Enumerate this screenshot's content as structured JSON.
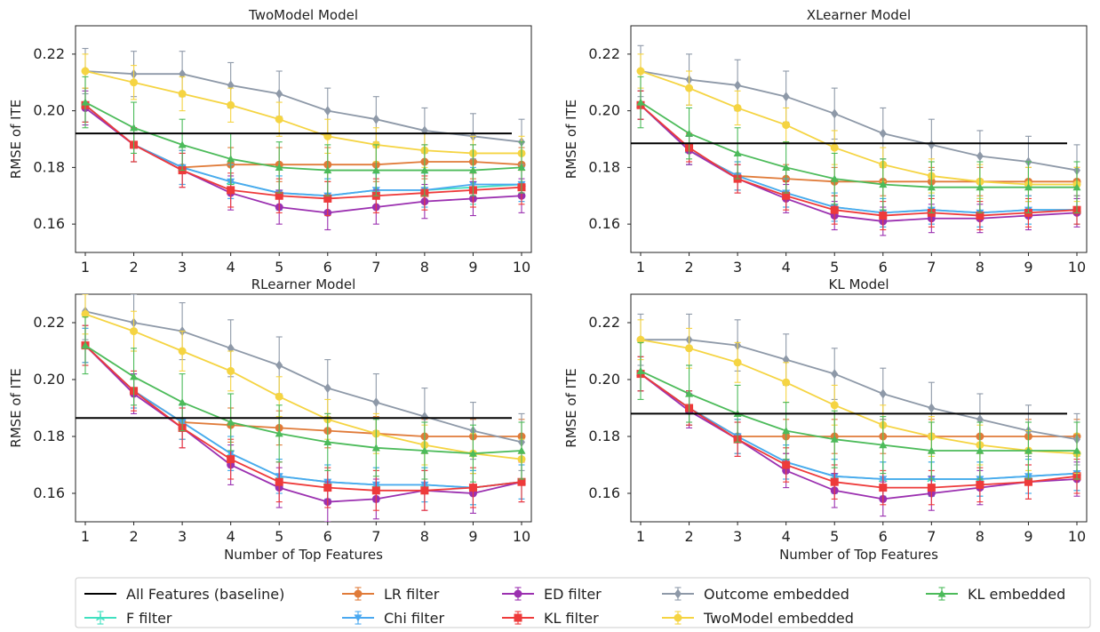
{
  "colors": {
    "baseline": "#000000",
    "F filter": "#40e0c0",
    "LR filter": "#e07b39",
    "Chi filter": "#4aa8f0",
    "ED filter": "#9b30b0",
    "KL filter": "#ee3a3a",
    "Outcome embedded": "#8e99a8",
    "TwoModel embedded": "#f5d442",
    "KL embedded": "#4cbb5a"
  },
  "legend": [
    {
      "name": "All Features (baseline)",
      "marker": "none"
    },
    {
      "name": "F filter",
      "marker": "tri-up"
    },
    {
      "name": "LR filter",
      "marker": "circle"
    },
    {
      "name": "Chi filter",
      "marker": "tri-down"
    },
    {
      "name": "ED filter",
      "marker": "circle"
    },
    {
      "name": "KL filter",
      "marker": "square"
    },
    {
      "name": "Outcome embedded",
      "marker": "diamond"
    },
    {
      "name": "TwoModel embedded",
      "marker": "circle"
    },
    {
      "name": "KL embedded",
      "marker": "triangle"
    }
  ],
  "chart_data": [
    {
      "type": "line",
      "title": "TwoModel Model",
      "xlabel": "",
      "ylabel": "RMSE of ITE",
      "x": [
        1,
        2,
        3,
        4,
        5,
        6,
        7,
        8,
        9,
        10
      ],
      "xticks": [
        "1",
        "2",
        "3",
        "4",
        "5",
        "6",
        "7",
        "8",
        "9",
        "10"
      ],
      "yticks": [
        "0.16",
        "0.18",
        "0.20",
        "0.22"
      ],
      "ylim": [
        0.15,
        0.23
      ],
      "baseline": 0.192,
      "series": [
        {
          "name": "F filter",
          "values": [
            0.202,
            0.188,
            0.18,
            0.175,
            0.171,
            0.17,
            0.172,
            0.172,
            0.173,
            0.174
          ],
          "err": 0.006
        },
        {
          "name": "LR filter",
          "values": [
            0.202,
            0.188,
            0.18,
            0.181,
            0.181,
            0.181,
            0.181,
            0.182,
            0.182,
            0.181
          ],
          "err": 0.006
        },
        {
          "name": "Chi filter",
          "values": [
            0.202,
            0.188,
            0.18,
            0.175,
            0.171,
            0.17,
            0.172,
            0.172,
            0.174,
            0.174
          ],
          "err": 0.006
        },
        {
          "name": "ED filter",
          "values": [
            0.201,
            0.188,
            0.179,
            0.171,
            0.166,
            0.164,
            0.166,
            0.168,
            0.169,
            0.17
          ],
          "err": 0.006
        },
        {
          "name": "KL filter",
          "values": [
            0.202,
            0.188,
            0.179,
            0.172,
            0.17,
            0.169,
            0.17,
            0.171,
            0.172,
            0.173
          ],
          "err": 0.006
        },
        {
          "name": "Outcome embedded",
          "values": [
            0.214,
            0.213,
            0.213,
            0.209,
            0.206,
            0.2,
            0.197,
            0.193,
            0.191,
            0.189
          ],
          "err": 0.008
        },
        {
          "name": "TwoModel embedded",
          "values": [
            0.214,
            0.21,
            0.206,
            0.202,
            0.197,
            0.191,
            0.188,
            0.186,
            0.185,
            0.185
          ],
          "err": 0.006
        },
        {
          "name": "KL embedded",
          "values": [
            0.203,
            0.194,
            0.188,
            0.183,
            0.18,
            0.179,
            0.179,
            0.179,
            0.179,
            0.18
          ],
          "err": 0.009
        }
      ]
    },
    {
      "type": "line",
      "title": "XLearner Model",
      "xlabel": "",
      "ylabel": "RMSE of ITE",
      "x": [
        1,
        2,
        3,
        4,
        5,
        6,
        7,
        8,
        9,
        10
      ],
      "xticks": [
        "1",
        "2",
        "3",
        "4",
        "5",
        "6",
        "7",
        "8",
        "9",
        "10"
      ],
      "yticks": [
        "0.16",
        "0.18",
        "0.20",
        "0.22"
      ],
      "ylim": [
        0.15,
        0.23
      ],
      "baseline": 0.1885,
      "series": [
        {
          "name": "F filter",
          "values": [
            0.202,
            0.186,
            0.177,
            0.171,
            0.166,
            0.164,
            0.165,
            0.164,
            0.165,
            0.165
          ],
          "err": 0.005
        },
        {
          "name": "LR filter",
          "values": [
            0.202,
            0.186,
            0.177,
            0.176,
            0.175,
            0.175,
            0.175,
            0.175,
            0.175,
            0.175
          ],
          "err": 0.005
        },
        {
          "name": "Chi filter",
          "values": [
            0.202,
            0.186,
            0.177,
            0.171,
            0.166,
            0.164,
            0.165,
            0.164,
            0.165,
            0.165
          ],
          "err": 0.005
        },
        {
          "name": "ED filter",
          "values": [
            0.202,
            0.186,
            0.176,
            0.169,
            0.163,
            0.161,
            0.162,
            0.162,
            0.163,
            0.164
          ],
          "err": 0.005
        },
        {
          "name": "KL filter",
          "values": [
            0.202,
            0.187,
            0.176,
            0.17,
            0.165,
            0.163,
            0.164,
            0.163,
            0.164,
            0.165
          ],
          "err": 0.005
        },
        {
          "name": "Outcome embedded",
          "values": [
            0.214,
            0.211,
            0.209,
            0.205,
            0.199,
            0.192,
            0.188,
            0.184,
            0.182,
            0.179
          ],
          "err": 0.009
        },
        {
          "name": "TwoModel embedded",
          "values": [
            0.214,
            0.208,
            0.201,
            0.195,
            0.187,
            0.181,
            0.177,
            0.175,
            0.174,
            0.174
          ],
          "err": 0.006
        },
        {
          "name": "KL embedded",
          "values": [
            0.203,
            0.192,
            0.185,
            0.18,
            0.176,
            0.174,
            0.173,
            0.173,
            0.173,
            0.173
          ],
          "err": 0.009
        }
      ]
    },
    {
      "type": "line",
      "title": "RLearner Model",
      "xlabel": "Number of Top Features",
      "ylabel": "RMSE of ITE",
      "x": [
        1,
        2,
        3,
        4,
        5,
        6,
        7,
        8,
        9,
        10
      ],
      "xticks": [
        "1",
        "2",
        "3",
        "4",
        "5",
        "6",
        "7",
        "8",
        "9",
        "10"
      ],
      "yticks": [
        "0.16",
        "0.18",
        "0.20",
        "0.22"
      ],
      "ylim": [
        0.15,
        0.23
      ],
      "baseline": 0.1865,
      "series": [
        {
          "name": "F filter",
          "values": [
            0.212,
            0.196,
            0.185,
            0.174,
            0.166,
            0.164,
            0.163,
            0.163,
            0.162,
            0.164
          ],
          "err": 0.006
        },
        {
          "name": "LR filter",
          "values": [
            0.212,
            0.196,
            0.185,
            0.184,
            0.183,
            0.182,
            0.181,
            0.18,
            0.18,
            0.18
          ],
          "err": 0.006
        },
        {
          "name": "Chi filter",
          "values": [
            0.212,
            0.196,
            0.185,
            0.174,
            0.166,
            0.164,
            0.163,
            0.163,
            0.162,
            0.164
          ],
          "err": 0.006
        },
        {
          "name": "ED filter",
          "values": [
            0.212,
            0.195,
            0.183,
            0.17,
            0.162,
            0.157,
            0.158,
            0.161,
            0.16,
            0.164
          ],
          "err": 0.007
        },
        {
          "name": "KL filter",
          "values": [
            0.212,
            0.196,
            0.183,
            0.172,
            0.164,
            0.162,
            0.161,
            0.161,
            0.162,
            0.164
          ],
          "err": 0.007
        },
        {
          "name": "Outcome embedded",
          "values": [
            0.224,
            0.22,
            0.217,
            0.211,
            0.205,
            0.197,
            0.192,
            0.187,
            0.182,
            0.178
          ],
          "err": 0.01
        },
        {
          "name": "TwoModel embedded",
          "values": [
            0.223,
            0.217,
            0.21,
            0.203,
            0.194,
            0.186,
            0.181,
            0.177,
            0.174,
            0.172
          ],
          "err": 0.007
        },
        {
          "name": "KL embedded",
          "values": [
            0.212,
            0.201,
            0.192,
            0.185,
            0.181,
            0.178,
            0.176,
            0.175,
            0.174,
            0.175
          ],
          "err": 0.01
        }
      ]
    },
    {
      "type": "line",
      "title": "KL Model",
      "xlabel": "Number of Top Features",
      "ylabel": "RMSE of ITE",
      "x": [
        1,
        2,
        3,
        4,
        5,
        6,
        7,
        8,
        9,
        10
      ],
      "xticks": [
        "1",
        "2",
        "3",
        "4",
        "5",
        "6",
        "7",
        "8",
        "9",
        "10"
      ],
      "yticks": [
        "0.16",
        "0.18",
        "0.20",
        "0.22"
      ],
      "ylim": [
        0.15,
        0.23
      ],
      "baseline": 0.188,
      "series": [
        {
          "name": "F filter",
          "values": [
            0.202,
            0.19,
            0.18,
            0.171,
            0.166,
            0.165,
            0.165,
            0.165,
            0.166,
            0.167
          ],
          "err": 0.006
        },
        {
          "name": "LR filter",
          "values": [
            0.202,
            0.19,
            0.18,
            0.18,
            0.18,
            0.18,
            0.18,
            0.18,
            0.18,
            0.18
          ],
          "err": 0.006
        },
        {
          "name": "Chi filter",
          "values": [
            0.202,
            0.19,
            0.18,
            0.171,
            0.166,
            0.165,
            0.165,
            0.165,
            0.166,
            0.167
          ],
          "err": 0.006
        },
        {
          "name": "ED filter",
          "values": [
            0.202,
            0.189,
            0.179,
            0.168,
            0.161,
            0.158,
            0.16,
            0.162,
            0.164,
            0.165
          ],
          "err": 0.006
        },
        {
          "name": "KL filter",
          "values": [
            0.202,
            0.19,
            0.179,
            0.17,
            0.164,
            0.162,
            0.162,
            0.163,
            0.164,
            0.166
          ],
          "err": 0.006
        },
        {
          "name": "Outcome embedded",
          "values": [
            0.214,
            0.214,
            0.212,
            0.207,
            0.202,
            0.195,
            0.19,
            0.186,
            0.182,
            0.179
          ],
          "err": 0.009
        },
        {
          "name": "TwoModel embedded",
          "values": [
            0.214,
            0.211,
            0.206,
            0.199,
            0.191,
            0.184,
            0.18,
            0.177,
            0.175,
            0.174
          ],
          "err": 0.007
        },
        {
          "name": "KL embedded",
          "values": [
            0.203,
            0.195,
            0.188,
            0.182,
            0.179,
            0.177,
            0.175,
            0.175,
            0.175,
            0.175
          ],
          "err": 0.01
        }
      ]
    }
  ]
}
